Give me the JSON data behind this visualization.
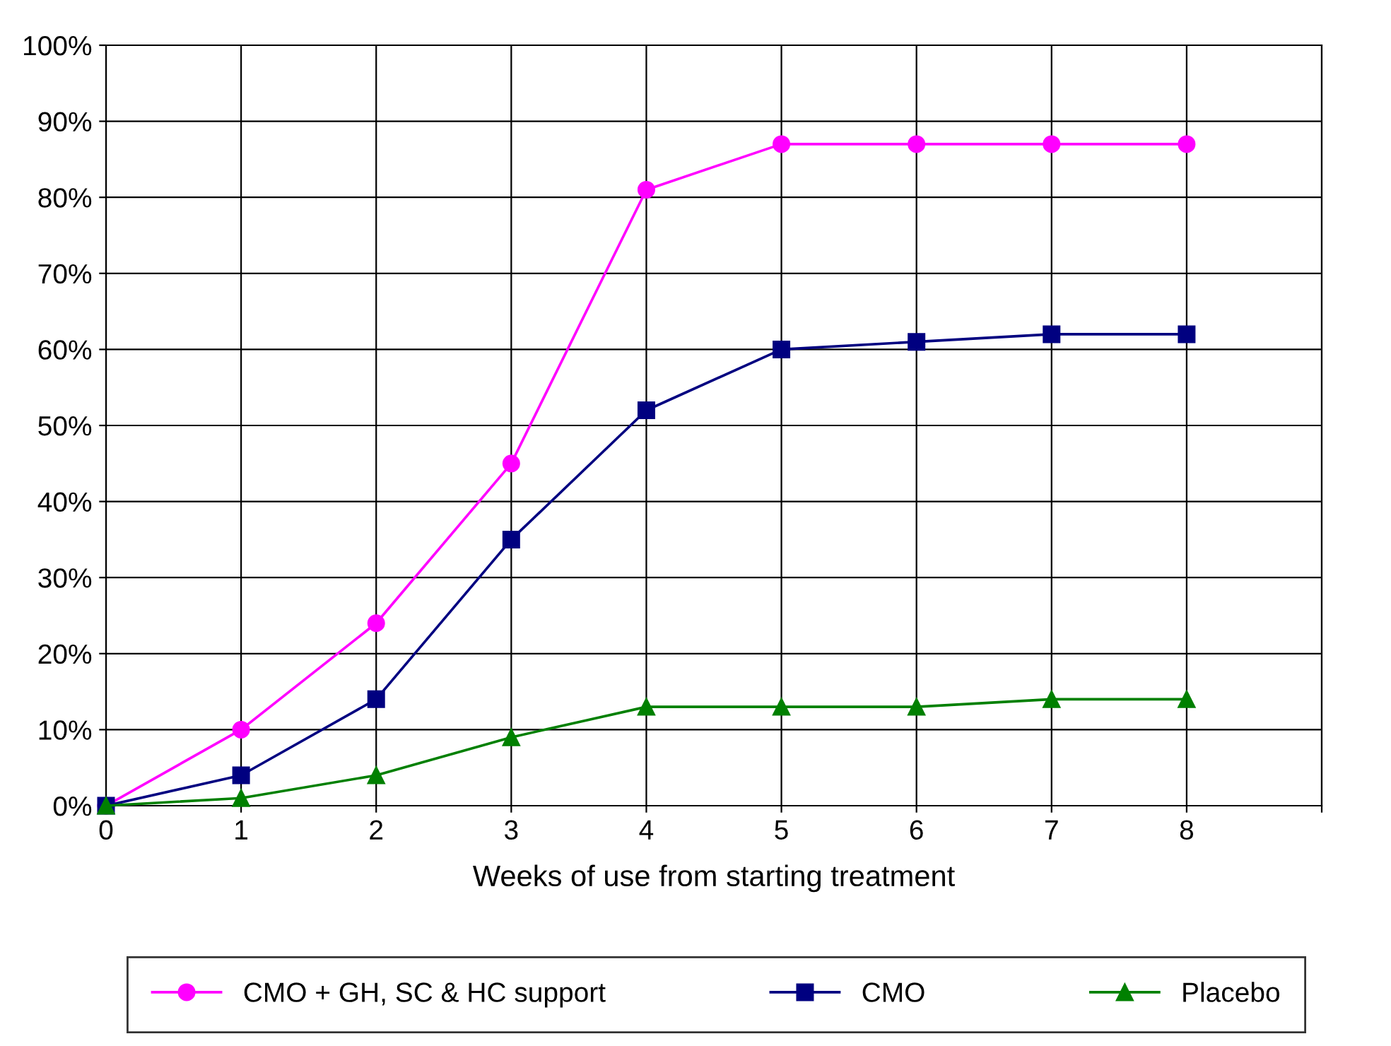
{
  "chart_data": {
    "type": "line",
    "xlabel": "Weeks of use from starting treatment",
    "x": [
      0,
      1,
      2,
      3,
      4,
      5,
      6,
      7,
      8
    ],
    "series": [
      {
        "name": "CMO + GH, SC & HC support",
        "color": "#ff00ff",
        "marker": "circle",
        "values": [
          0,
          10,
          24,
          45,
          81,
          87,
          87,
          87,
          87
        ]
      },
      {
        "name": "CMO",
        "color": "#000080",
        "marker": "square",
        "values": [
          0,
          4,
          14,
          35,
          52,
          60,
          61,
          62,
          62
        ]
      },
      {
        "name": "Placebo",
        "color": "#008000",
        "marker": "triangle",
        "values": [
          0,
          1,
          4,
          9,
          13,
          13,
          13,
          14,
          14
        ]
      }
    ],
    "xlim": [
      0,
      9
    ],
    "xticks": [
      0,
      1,
      2,
      3,
      4,
      5,
      6,
      7,
      8,
      {
        "value": 9,
        "label": null
      }
    ],
    "ylim": [
      0,
      100
    ],
    "yticks": [
      {
        "value": 0,
        "label": "0%"
      },
      {
        "value": 10,
        "label": "10%"
      },
      {
        "value": 20,
        "label": "20%"
      },
      {
        "value": 30,
        "label": "30%"
      },
      {
        "value": 40,
        "label": "40%"
      },
      {
        "value": 50,
        "label": "50%"
      },
      {
        "value": 60,
        "label": "60%"
      },
      {
        "value": 70,
        "label": "70%"
      },
      {
        "value": 80,
        "label": "80%"
      },
      {
        "value": 90,
        "label": "90%"
      },
      {
        "value": 100,
        "label": "100%"
      }
    ],
    "grid": true,
    "legend": "bottom",
    "line_style": "solid"
  }
}
